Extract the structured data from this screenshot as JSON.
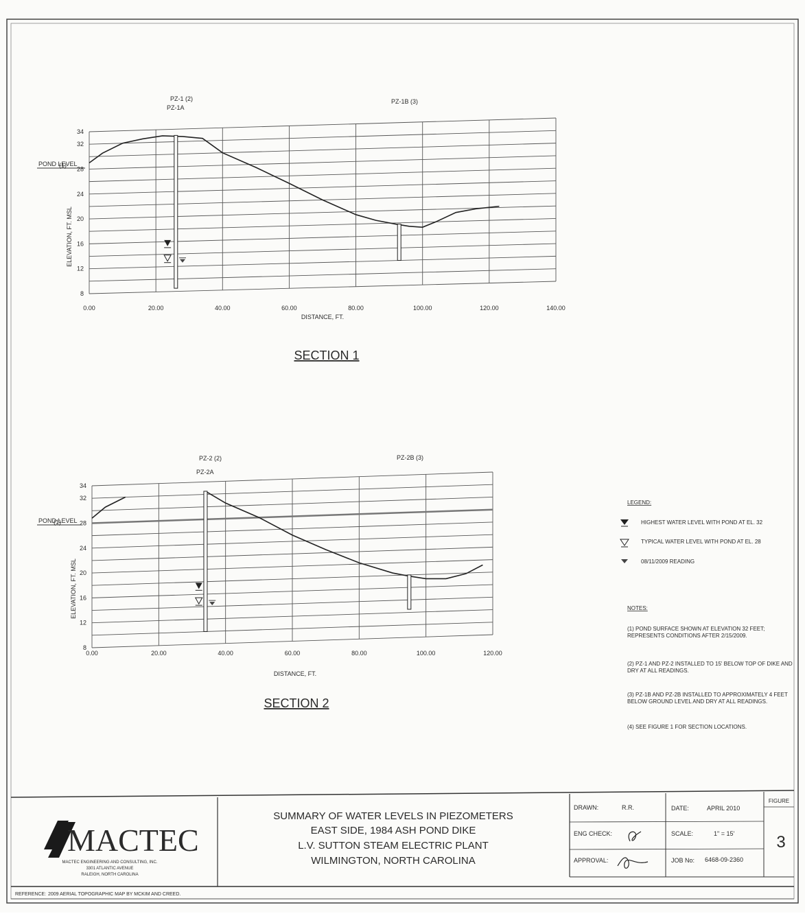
{
  "sections": [
    {
      "id": "section1",
      "title": "SECTION 1",
      "xlabel": "DISTANCE, FT.",
      "ylabel": "ELEVATION, FT. MSL",
      "xticks": [
        "0.00",
        "20.00",
        "40.00",
        "60.00",
        "80.00",
        "100.00",
        "120.00",
        "140.00"
      ],
      "yticks": [
        "34",
        "32",
        "28",
        "24",
        "20",
        "16",
        "12",
        "8"
      ],
      "pond_level_number": "(1)",
      "pond_level_label": "POND LEVEL",
      "piezometer_a_label_1": "PZ-1 (2)",
      "piezometer_a_label_2": "PZ-1A",
      "piezometer_b_label": "PZ-1B (3)"
    },
    {
      "id": "section2",
      "title": "SECTION 2",
      "xlabel": "DISTANCE, FT.",
      "ylabel": "ELEVATION, FT. MSL",
      "xticks": [
        "0.00",
        "20.00",
        "40.00",
        "60.00",
        "80.00",
        "100.00",
        "120.00"
      ],
      "yticks": [
        "34",
        "32",
        "28",
        "24",
        "20",
        "16",
        "12",
        "8"
      ],
      "pond_level_number": "(1)",
      "pond_level_label": "POND LEVEL",
      "piezometer_a_label_1": "PZ-2 (2)",
      "piezometer_a_label_2": "PZ-2A",
      "piezometer_b_label": "PZ-2B (3)"
    }
  ],
  "chart_data": [
    {
      "type": "line",
      "title": "SECTION 1",
      "xlabel": "DISTANCE, FT.",
      "ylabel": "ELEVATION, FT. MSL",
      "xlim": [
        0,
        140
      ],
      "ylim": [
        8,
        34
      ],
      "series": [
        {
          "x": [
            0,
            4,
            10,
            16,
            22,
            28,
            34,
            40,
            50,
            60,
            70,
            80,
            86,
            92,
            96,
            100,
            104,
            110,
            116,
            123
          ],
          "y": [
            29,
            30.5,
            32,
            32.6,
            33,
            32.8,
            32.4,
            30,
            27.5,
            24.8,
            22,
            19.5,
            18.5,
            17.8,
            17.4,
            17.2,
            18,
            19.4,
            19.9,
            20.2
          ]
        }
      ],
      "piezometers": [
        {
          "x": 26,
          "top": 33,
          "bottom": 8.5
        },
        {
          "x": 93,
          "top": 17.8,
          "bottom": 12
        }
      ],
      "water_marks": [
        {
          "kind": "highest",
          "x": 23.5,
          "y": 15.6
        },
        {
          "kind": "typical",
          "x": 23.5,
          "y": 13.2
        },
        {
          "kind": "reading",
          "x": 28,
          "y": 12.8
        }
      ]
    },
    {
      "type": "line",
      "title": "SECTION 2",
      "xlabel": "DISTANCE, FT.",
      "ylabel": "ELEVATION, FT. MSL",
      "xlim": [
        0,
        120
      ],
      "ylim": [
        8,
        34
      ],
      "series": [
        {
          "x": [
            0,
            4,
            10
          ],
          "y": [
            28.8,
            30.5,
            32
          ]
        },
        {
          "x": [
            34,
            40,
            50,
            60,
            70,
            80,
            90,
            95,
            100,
            106,
            112,
            117
          ],
          "y": [
            32.5,
            30.5,
            28,
            25,
            22.5,
            20.2,
            18.4,
            17.8,
            17.3,
            17.2,
            17.9,
            19.2
          ]
        }
      ],
      "piezometers": [
        {
          "x": 34,
          "top": 32.5,
          "bottom": 10
        },
        {
          "x": 95,
          "top": 18,
          "bottom": 12.5
        }
      ],
      "water_marks": [
        {
          "kind": "highest",
          "x": 32,
          "y": 17.2
        },
        {
          "kind": "typical",
          "x": 32,
          "y": 14.8
        },
        {
          "kind": "reading",
          "x": 36,
          "y": 14.4
        }
      ]
    }
  ],
  "legend": {
    "heading": "LEGEND:",
    "items": [
      {
        "symbol": "highest",
        "label": "HIGHEST WATER LEVEL WITH POND AT EL. 32"
      },
      {
        "symbol": "typical",
        "label": "TYPICAL WATER LEVEL WITH POND AT EL. 28"
      },
      {
        "symbol": "reading",
        "label": "08/11/2009 READING"
      }
    ]
  },
  "notes": {
    "heading": "NOTES:",
    "items": [
      {
        "line1": "(1) POND SURFACE SHOWN AT ELEVATION 32 FEET;",
        "line2": "REPRESENTS CONDITIONS AFTER 2/15/2009."
      },
      {
        "line1": "(2) PZ-1 AND PZ-2 INSTALLED TO 15' BELOW TOP OF DIKE AND",
        "line2": "DRY AT ALL READINGS."
      },
      {
        "line1": "(3) PZ-1B AND PZ-2B INSTALLED TO APPROXIMATELY 4 FEET",
        "line2": "BELOW GROUND LEVEL AND DRY AT ALL READINGS."
      },
      {
        "line1": "(4) SEE FIGURE 1 FOR SECTION LOCATIONS.",
        "line2": ""
      }
    ]
  },
  "title_block": {
    "company": "MACTEC",
    "company_line1": "MACTEC ENGINEERING AND CONSULTING, INC.",
    "company_line2": "3301 ATLANTIC AVENUE",
    "company_line3": "RALEIGH, NORTH CAROLINA",
    "title_line1": "SUMMARY OF WATER LEVELS IN PIEZOMETERS",
    "title_line2": "EAST SIDE, 1984 ASH POND DIKE",
    "title_line3": "L.V. SUTTON STEAM ELECTRIC PLANT",
    "title_line4": "WILMINGTON, NORTH CAROLINA",
    "drawn_label": "DRAWN:",
    "drawn_value": "R.R.",
    "eng_check_label": "ENG CHECK:",
    "approval_label": "APPROVAL:",
    "date_label": "DATE:",
    "date_value": "APRIL 2010",
    "scale_label": "SCALE:",
    "scale_value": "1\" = 15'",
    "job_label": "JOB No:",
    "job_value": "6468-09-2360",
    "figure_label": "FIGURE",
    "figure_number": "3",
    "reference_label": "REFERENCE:",
    "reference_text": "2009 AERIAL TOPOGRAPHIC MAP BY MCKIM AND CREED."
  }
}
